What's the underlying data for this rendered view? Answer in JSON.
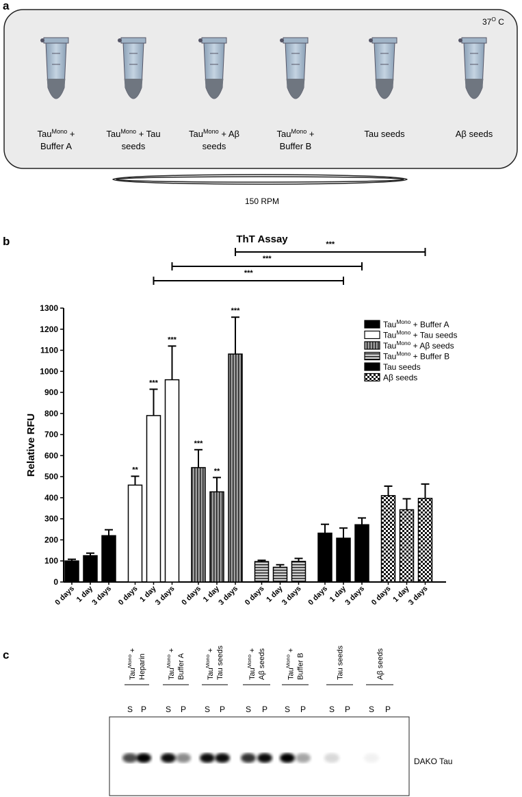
{
  "panel_a": {
    "label": "a",
    "temperature": {
      "main": "37",
      "sup": "O",
      "rest": " C"
    },
    "tubes": [
      {
        "lines": [
          {
            "main": "Tau",
            "sup": "Mono",
            "rest": " +"
          },
          {
            "main": "Buffer A"
          }
        ]
      },
      {
        "lines": [
          {
            "main": "Tau",
            "sup": "Mono",
            "rest": " + Tau"
          },
          {
            "main": "seeds"
          }
        ]
      },
      {
        "lines": [
          {
            "main": "Tau",
            "sup": "Mono",
            "rest": " + Aβ"
          },
          {
            "main": "seeds"
          }
        ]
      },
      {
        "lines": [
          {
            "main": "Tau",
            "sup": "Mono",
            "rest": " +"
          },
          {
            "main": "Buffer B"
          }
        ]
      },
      {
        "lines": [
          {
            "main": "Tau seeds"
          }
        ]
      },
      {
        "lines": [
          {
            "main": "Aβ seeds"
          }
        ]
      }
    ],
    "speed": "150 RPM"
  },
  "chart_data": {
    "type": "bar",
    "panel_label": "b",
    "title": "ThT Assay",
    "y_label": "Relative RFU",
    "categories": [
      "0 days",
      "1 day",
      "3 days"
    ],
    "ylim": [
      0,
      1300
    ],
    "yticks": [
      0,
      100,
      200,
      300,
      400,
      500,
      600,
      700,
      800,
      900,
      1000,
      1100,
      1200,
      1300
    ],
    "series": [
      {
        "name": {
          "main": "Tau",
          "sup": "Mono",
          "rest": " + Buffer A"
        },
        "color": "#000000",
        "pattern": "solid",
        "values": [
          100,
          125,
          220
        ],
        "errors": [
          8,
          12,
          28
        ]
      },
      {
        "name": {
          "main": "Tau",
          "sup": "Mono",
          "rest": " + Tau seeds"
        },
        "color": "#ffffff",
        "pattern": "solid",
        "values": [
          460,
          790,
          960
        ],
        "errors": [
          42,
          125,
          160
        ],
        "significance": [
          "**",
          "***",
          "***"
        ]
      },
      {
        "name": {
          "main": "Tau",
          "sup": "Mono",
          "rest": " + Aβ seeds"
        },
        "color": "#a0a0a0",
        "pattern": "vertical-stripes",
        "values": [
          543,
          428,
          1082
        ],
        "errors": [
          85,
          68,
          175
        ],
        "significance": [
          "***",
          "**",
          "***"
        ]
      },
      {
        "name": {
          "main": "Tau",
          "sup": "Mono",
          "rest": " + Buffer B"
        },
        "color": "#c8c8c8",
        "pattern": "horizontal-stripes",
        "values": [
          97,
          70,
          98
        ],
        "errors": [
          6,
          12,
          14
        ]
      },
      {
        "name": {
          "main": "Tau seeds"
        },
        "color": "#000000",
        "pattern": "solid",
        "values": [
          232,
          208,
          272
        ],
        "errors": [
          42,
          48,
          32
        ]
      },
      {
        "name": {
          "main": "Aβ seeds"
        },
        "color": "#ffffff",
        "pattern": "checker",
        "values": [
          410,
          343,
          397
        ],
        "errors": [
          45,
          52,
          68
        ]
      }
    ],
    "comparisons": [
      "***",
      "***",
      "***"
    ]
  },
  "panel_c": {
    "label": "c",
    "lanes": [
      {
        "lines": [
          {
            "main": "Tau",
            "sup": "Mono",
            "rest": " +"
          },
          {
            "main": "Heparin"
          }
        ]
      },
      {
        "lines": [
          {
            "main": "Tau",
            "sup": "Mono",
            "rest": " +"
          },
          {
            "main": "Buffer A"
          }
        ]
      },
      {
        "lines": [
          {
            "main": "Tau",
            "sup": "Mono",
            "rest": " +"
          },
          {
            "main": "Tau seeds"
          }
        ]
      },
      {
        "lines": [
          {
            "main": "Tau",
            "sup": "Mono",
            "rest": " +"
          },
          {
            "main": "Aβ seeds"
          }
        ]
      },
      {
        "lines": [
          {
            "main": "Tau",
            "sup": "Mono",
            "rest": " +"
          },
          {
            "main": "Buffer B"
          }
        ]
      },
      {
        "lines": [
          {
            "main": "Tau seeds"
          }
        ]
      },
      {
        "lines": [
          {
            "main": "Aβ seeds"
          }
        ]
      }
    ],
    "fractions": [
      "S",
      "P"
    ],
    "antibody": "DAKO Tau"
  }
}
